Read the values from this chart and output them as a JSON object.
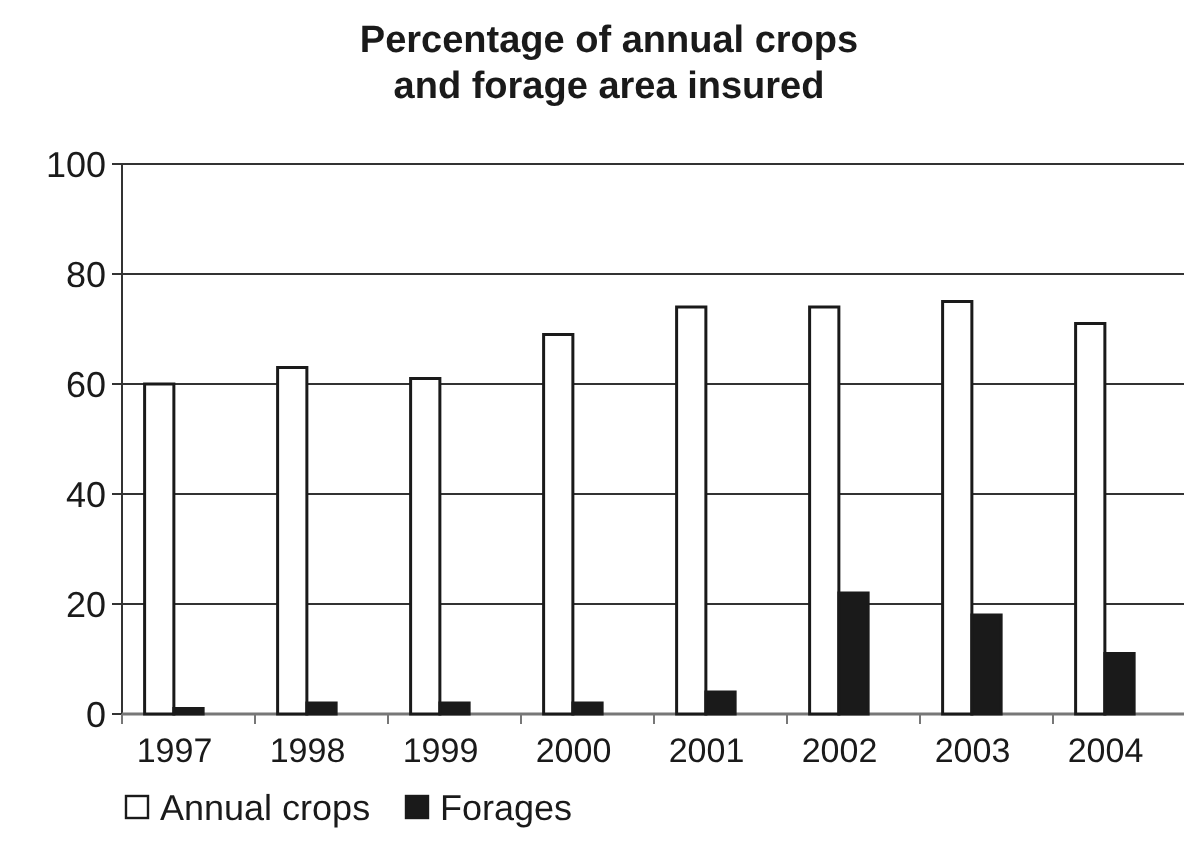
{
  "chart_data": {
    "type": "bar",
    "title": "Percentage of annual crops\nand forage area insured",
    "categories": [
      "1997",
      "1998",
      "1999",
      "2000",
      "2001",
      "2002",
      "2003",
      "2004"
    ],
    "series": [
      {
        "name": "Annual crops",
        "color": "#ffffff",
        "values": [
          60,
          63,
          61,
          69,
          74,
          74,
          75,
          71
        ]
      },
      {
        "name": "Forages",
        "color": "#1a1a1a",
        "values": [
          1,
          2,
          2,
          2,
          4,
          22,
          18,
          11
        ]
      }
    ],
    "ylim": [
      0,
      100
    ],
    "yticks": [
      0,
      20,
      40,
      60,
      80,
      100
    ],
    "grid": "y",
    "legend": "bottom left"
  }
}
